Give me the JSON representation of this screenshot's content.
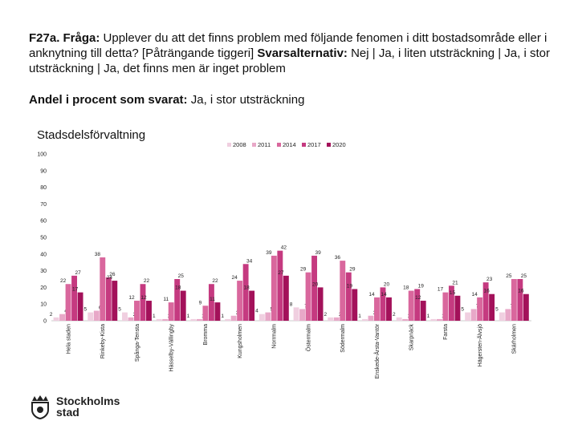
{
  "header": {
    "question_prefix": "F27a. Fråga:",
    "question_text": " Upplever du att det finns problem med följande fenomen i ditt bostadsområde eller i anknytning till detta? [Påträngande tiggeri] ",
    "alternatives_prefix": "Svarsalternativ:",
    "alternatives_text": " Nej | Ja, i liten utsträckning | Ja, i stor utsträckning | Ja, det finns men är inget problem",
    "share_prefix": "Andel i procent som svarat:",
    "share_text": " Ja, i stor utsträckning"
  },
  "logo": {
    "text_line1": "Stockholms",
    "text_line2": "stad"
  },
  "chart_data": {
    "type": "bar",
    "title": "Stadsdelsförvaltning",
    "xlabel": "",
    "ylabel": "",
    "ylim": [
      0,
      100
    ],
    "yticks": [
      0,
      10,
      20,
      30,
      40,
      50,
      60,
      70,
      80,
      90,
      100
    ],
    "grid": false,
    "legend_position": "top",
    "categories": [
      "Rinkeby-Kista",
      "Spånga-Tensta",
      "Hässelby-Vällingby",
      "Bromma",
      "Kungsholmen",
      "Norrmalm",
      "Östermalm",
      "Södermalm",
      "Enskede-Årsta-Vantör",
      "Skarpnäck",
      "Farsta",
      "Hägersten-Älvsjö",
      "Skärholmen"
    ],
    "leftmost_category_label": "Hela staden",
    "leftmost_values": [
      2,
      4,
      22,
      27,
      17
    ],
    "series": [
      {
        "name": "2008",
        "color": "#f0cfe0",
        "values": [
          5,
          5,
          1,
          1,
          1,
          4,
          8,
          2,
          1,
          2,
          1,
          5,
          5
        ]
      },
      {
        "name": "2011",
        "color": "#e8a8c8",
        "values": [
          6,
          2,
          1,
          1,
          3,
          5,
          7,
          2,
          3,
          1,
          1,
          7,
          7
        ]
      },
      {
        "name": "2014",
        "color": "#d9679d",
        "values": [
          38,
          12,
          11,
          9,
          24,
          39,
          29,
          36,
          14,
          18,
          17,
          14,
          25
        ]
      },
      {
        "name": "2017",
        "color": "#c53a80",
        "values": [
          26,
          22,
          25,
          22,
          34,
          42,
          39,
          29,
          20,
          19,
          21,
          23,
          25
        ]
      },
      {
        "name": "2020",
        "color": "#a3115a",
        "values": [
          24,
          12,
          18,
          11,
          18,
          27,
          20,
          19,
          14,
          12,
          15,
          16,
          16
        ]
      }
    ]
  }
}
